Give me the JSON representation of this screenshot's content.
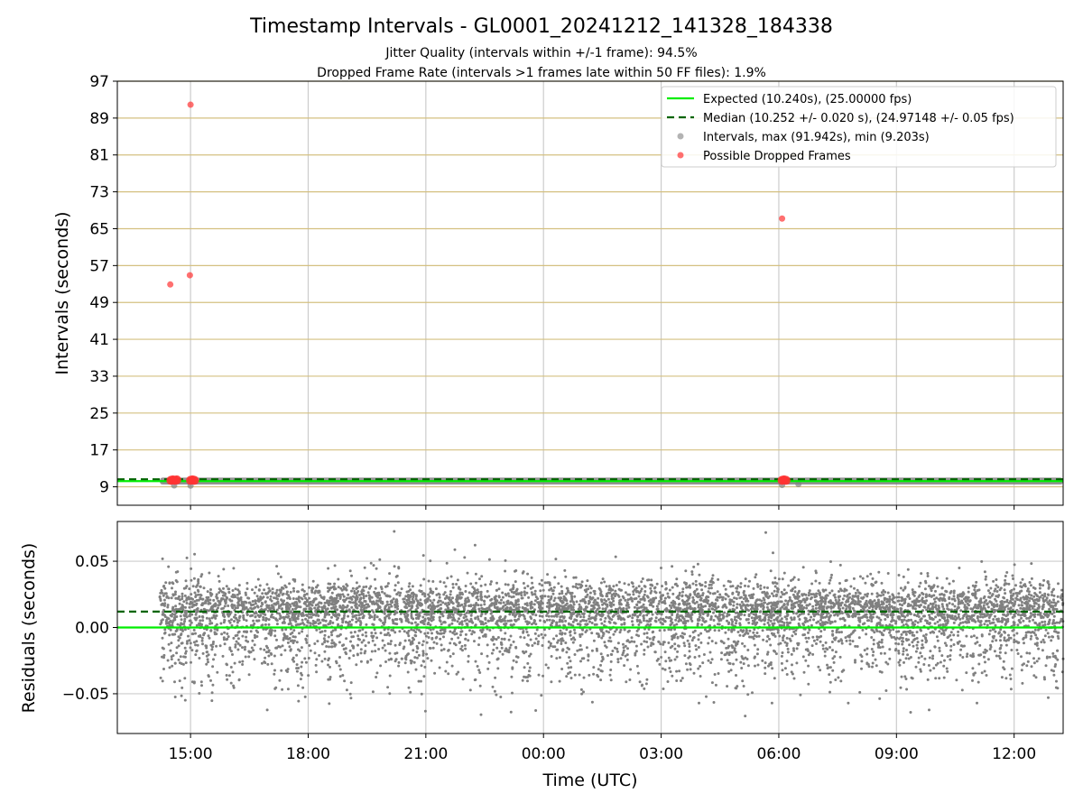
{
  "chart_data": [
    {
      "type": "scatter",
      "title": "Timestamp Intervals - GL0001_20241212_141328_184338",
      "subtitles": [
        "Jitter Quality (intervals within +/-1 frame): 94.5%",
        "Dropped Frame Rate (intervals >1 frames late within 50 FF files): 1.9%"
      ],
      "ylabel": "Intervals (seconds)",
      "xlim": [
        "2024-12-12T13:08",
        "2024-12-13T13:15"
      ],
      "ylim": [
        5,
        97
      ],
      "yticks": [
        9,
        17,
        25,
        33,
        41,
        49,
        57,
        65,
        73,
        81,
        89,
        97
      ],
      "grid": "vertical lines at x ticks (gray), horizontal lines at y ticks (gold)",
      "legend_position": "top-right",
      "legend": [
        "Expected (10.240s), (25.00000 fps)",
        "Median (10.252 +/- 0.020 s), (24.97148 +/- 0.05 fps)",
        "Intervals, max (91.942s), min (9.203s)",
        "Possible Dropped Frames"
      ],
      "expected": 10.24,
      "median": 10.252,
      "intervals": {
        "max": 91.942,
        "min": 9.203,
        "t_start": "2024-12-12T14:13",
        "t_end": "2024-12-13T13:15"
      },
      "dropped_frames": [
        {
          "t": "2024-12-12T14:29",
          "v": 52.9
        },
        {
          "t": "2024-12-12T14:59",
          "v": 54.9
        },
        {
          "t": "2024-12-12T15:00",
          "v": 91.9
        },
        {
          "t": "2024-12-13T06:05",
          "v": 67.2
        },
        {
          "t": "2024-12-12T14:30",
          "v": 10.4
        },
        {
          "t": "2024-12-12T14:33",
          "v": 10.5
        },
        {
          "t": "2024-12-12T14:36",
          "v": 10.4
        },
        {
          "t": "2024-12-12T14:39",
          "v": 10.5
        },
        {
          "t": "2024-12-12T15:00",
          "v": 10.4
        },
        {
          "t": "2024-12-12T15:03",
          "v": 10.5
        },
        {
          "t": "2024-12-12T15:06",
          "v": 10.4
        },
        {
          "t": "2024-12-13T06:05",
          "v": 10.4
        },
        {
          "t": "2024-12-13T06:08",
          "v": 10.5
        },
        {
          "t": "2024-12-13T06:11",
          "v": 10.4
        }
      ]
    },
    {
      "type": "scatter",
      "ylabel": "Residuals (seconds)",
      "xlabel": "Time (UTC)",
      "ylim": [
        -0.08,
        0.08
      ],
      "yticks": [
        -0.05,
        0.0,
        0.05
      ],
      "ytick_labels": [
        "−0.05",
        "0.00",
        "0.05"
      ],
      "xticks": [
        "2024-12-12T15:00",
        "2024-12-12T18:00",
        "2024-12-12T21:00",
        "2024-12-13T00:00",
        "2024-12-13T03:00",
        "2024-12-13T06:00",
        "2024-12-13T09:00",
        "2024-12-13T12:00"
      ],
      "xtick_labels": [
        "15:00",
        "18:00",
        "21:00",
        "00:00",
        "03:00",
        "06:00",
        "09:00",
        "12:00"
      ],
      "expected_residual": 0.0,
      "median_residual": 0.012,
      "residuals": {
        "t_start": "2024-12-12T14:13",
        "t_end": "2024-12-13T13:15",
        "min": -0.068,
        "max": 0.078
      },
      "grid": "on"
    }
  ],
  "colors": {
    "expected": "#00ee00",
    "median": "#006400",
    "intervals": "#808080",
    "dropped": "#ff3333",
    "vgrid": "#cccccc",
    "hgrid": "#d4c080"
  }
}
